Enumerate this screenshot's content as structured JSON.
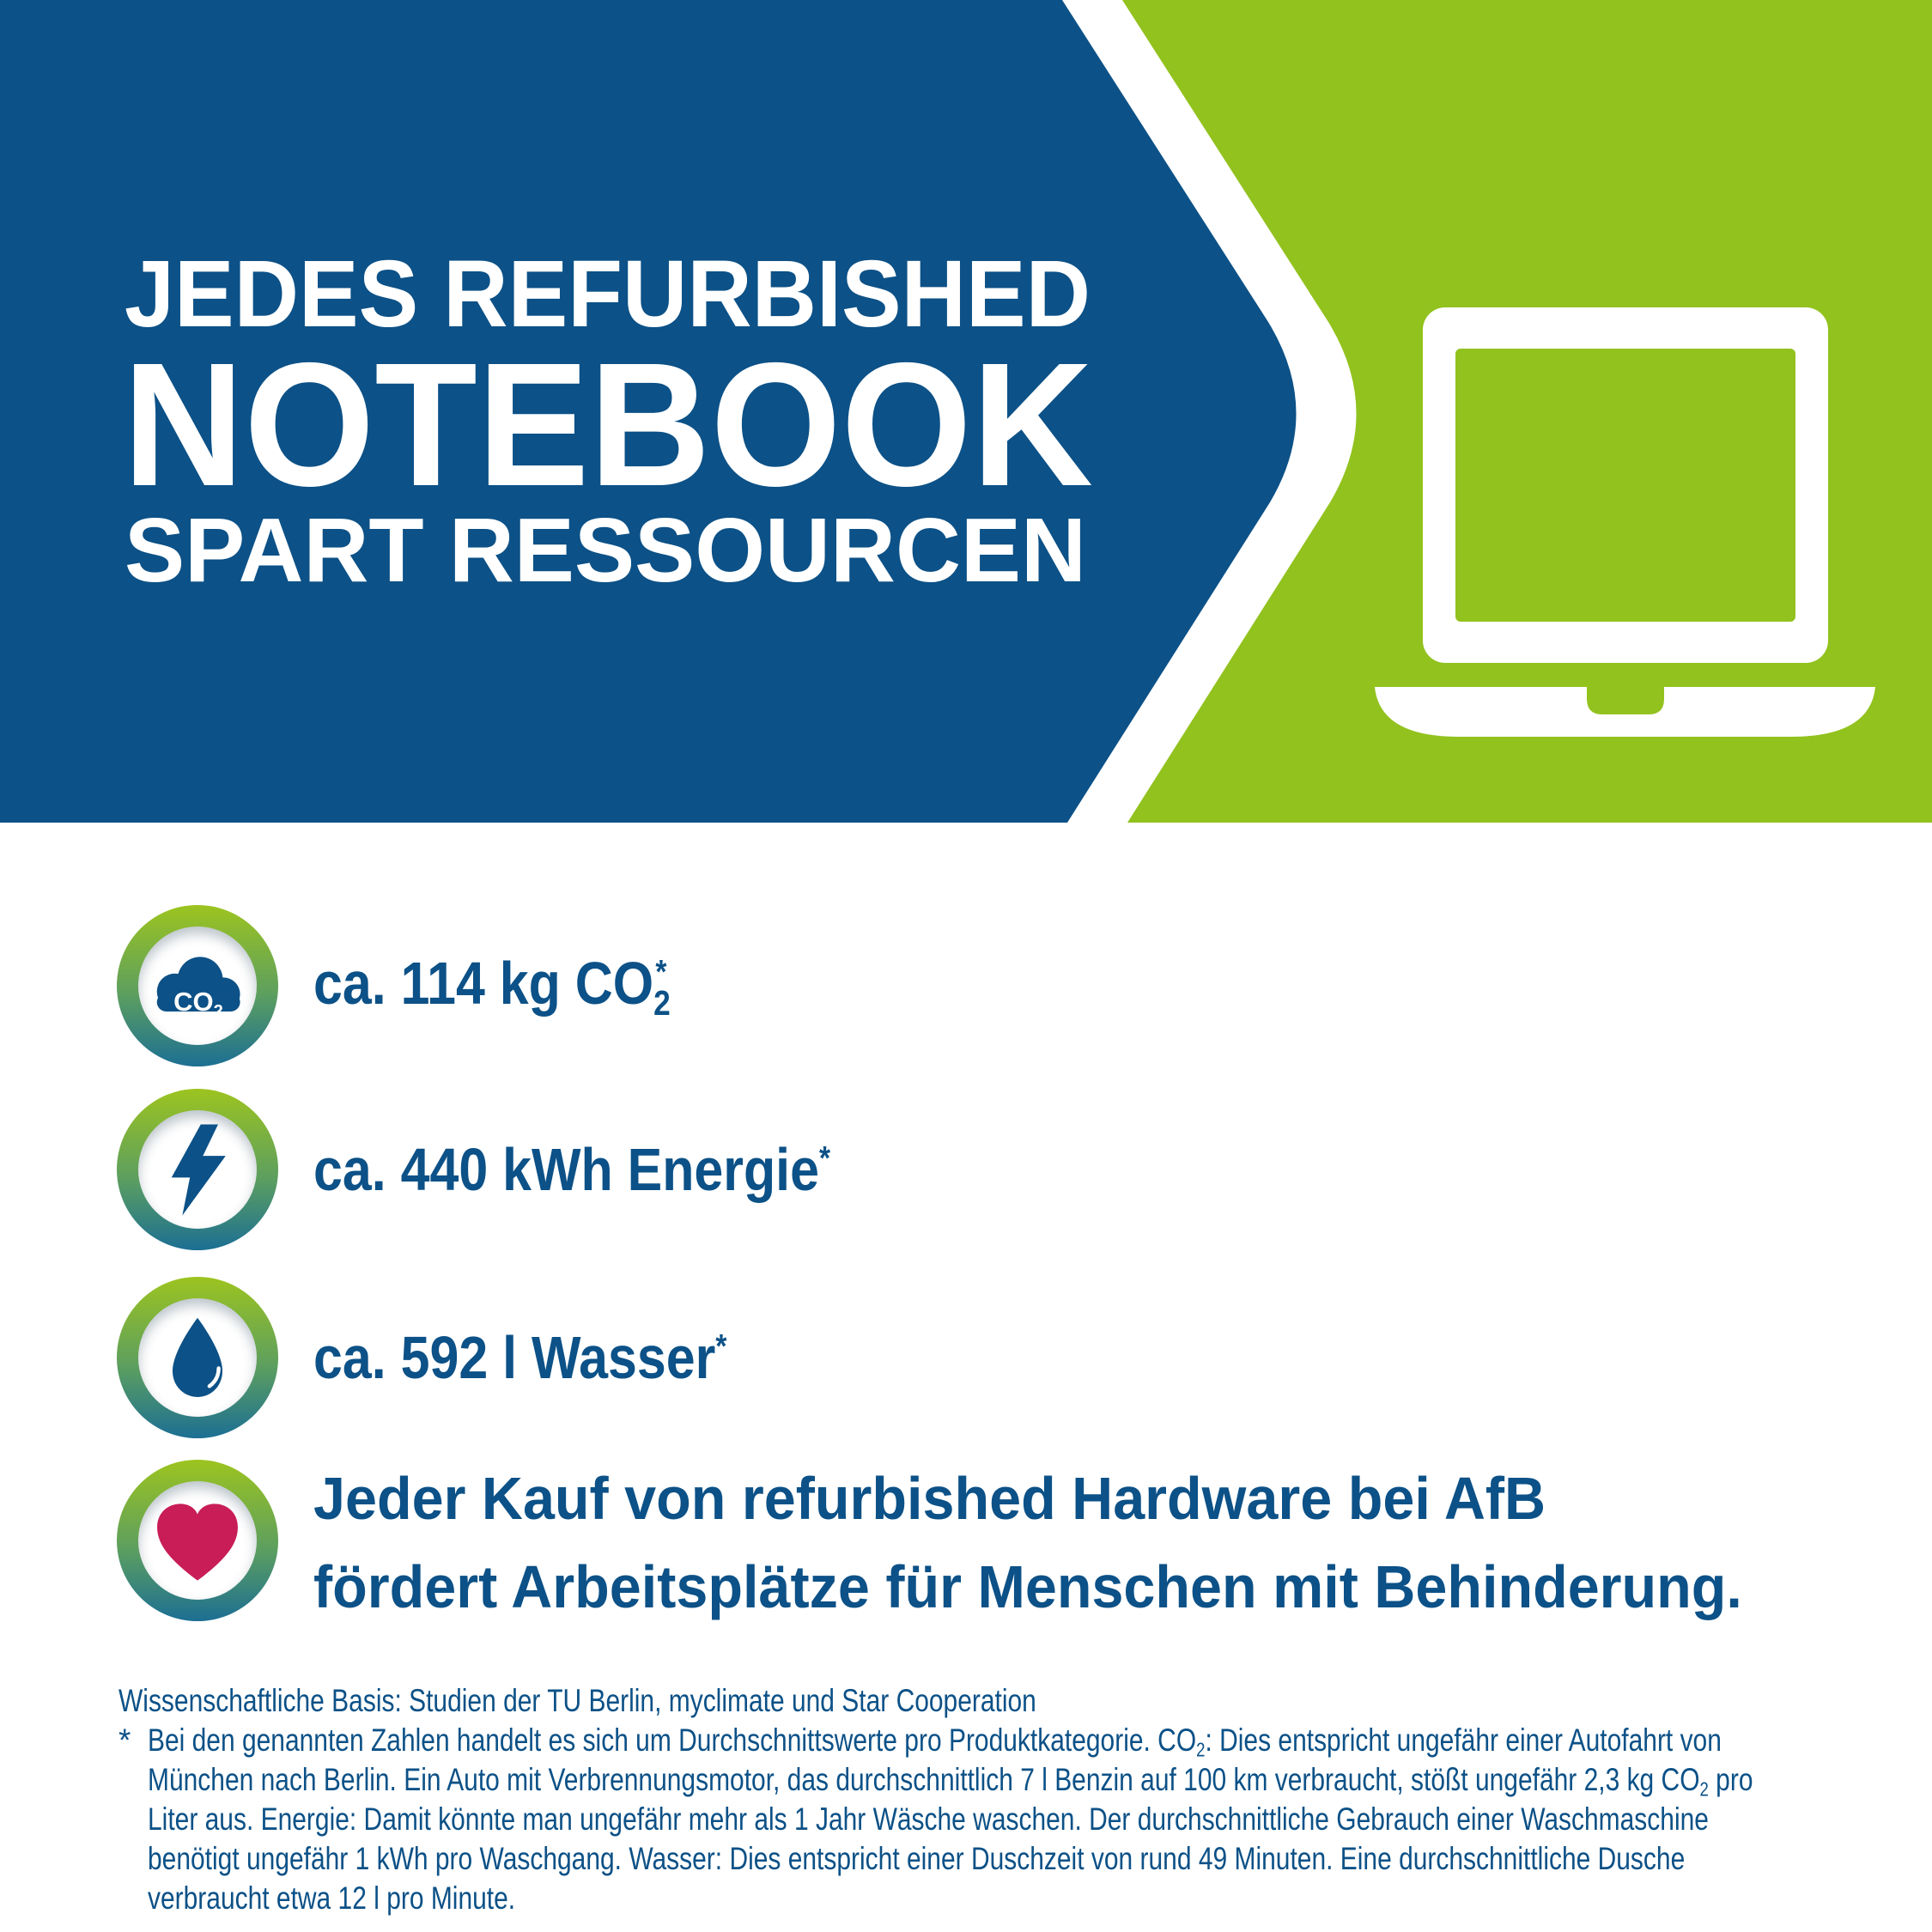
{
  "colors": {
    "blue": "#0C5187",
    "green": "#92C21E",
    "heart_red": "#C81D56",
    "ring_top": "#9CC41F",
    "ring_bottom": "#1C6F93",
    "white": "#FFFFFF"
  },
  "banner": {
    "headline_line1": "JEDES REFURBISHED",
    "headline_line2": "NOTEBOOK",
    "headline_line3": "SPART RESSOURCEN",
    "laptop_icon": "laptop-icon"
  },
  "cloud_label": {
    "text": "CO",
    "sub": "2"
  },
  "stats": [
    {
      "icon": "co2-cloud-icon",
      "segments": [
        {
          "t": "ca. 114 kg CO"
        },
        {
          "t": "2",
          "sub": true
        },
        {
          "t": "*",
          "sup": true,
          "over": true
        }
      ]
    },
    {
      "icon": "lightning-icon",
      "segments": [
        {
          "t": "ca. 440 kWh Energie"
        },
        {
          "t": "*",
          "sup": true
        }
      ]
    },
    {
      "icon": "water-drop-icon",
      "segments": [
        {
          "t": "ca. 592 l Wasser"
        },
        {
          "t": "*",
          "sup": true
        }
      ]
    }
  ],
  "impact": {
    "icon": "heart-icon",
    "line1": "Jeder Kauf von refurbished Hardware bei AfB",
    "line2": "fördert Arbeitsplätze für Menschen mit Behinderung."
  },
  "footnote": {
    "source_line": "Wissenschaftliche Basis: Studien der TU Berlin, myclimate und Star Cooperation",
    "marker": "*",
    "lines": [
      [
        {
          "t": "Bei den genannten Zahlen handelt es sich um Durchschnittswerte pro Produktkategorie. CO"
        },
        {
          "t": "2",
          "sub": true
        },
        {
          "t": ": Dies entspricht ungefähr einer Autofahrt von"
        }
      ],
      [
        {
          "t": "München nach Berlin. Ein Auto mit Verbrennungsmotor, das durchschnittlich 7 l Benzin auf 100 km verbraucht, stößt ungefähr 2,3 kg CO"
        },
        {
          "t": "2",
          "sub": true
        },
        {
          "t": " pro"
        }
      ],
      [
        {
          "t": "Liter aus. Energie: Damit könnte man ungefähr mehr als 1 Jahr Wäsche waschen. Der durchschnittliche Gebrauch einer Waschmaschine"
        }
      ],
      [
        {
          "t": "benötigt ungefähr 1 kWh pro Waschgang. Wasser: Dies entspricht einer Duschzeit von rund 49 Minuten. Eine durchschnittliche Dusche"
        }
      ],
      [
        {
          "t": "verbraucht etwa 12 l pro Minute."
        }
      ]
    ]
  }
}
